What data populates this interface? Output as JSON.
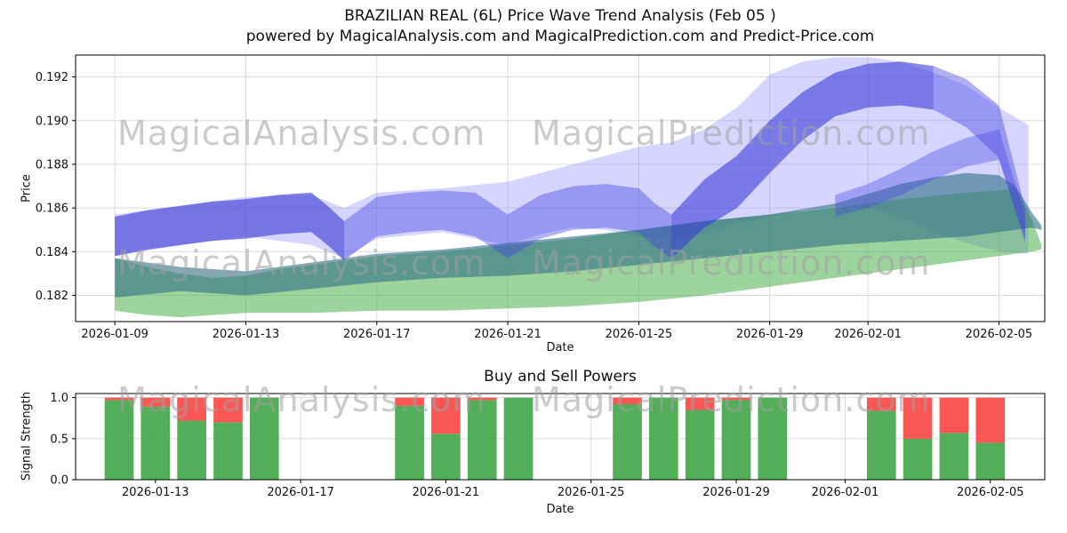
{
  "title": {
    "line1": "BRAZILIAN REAL  (6L) Price Wave Trend Analysis (Feb 05 )",
    "line2": "powered by MagicalAnalysis.com and MagicalPrediction.com and Predict-Price.com"
  },
  "watermarks": {
    "left": "MagicalAnalysis.com",
    "right": "MagicalPrediction.com"
  },
  "colors": {
    "band_light": "#7b7bff",
    "band_main": "#4646e0",
    "band_dark": "#3333cc",
    "band_green": "#4daf4d",
    "band_teal": "#2f6f86",
    "buy": "#3fa546",
    "sell": "#f94541",
    "grid": "#dcdcdc",
    "axis": "#000000"
  },
  "chart_data": [
    {
      "type": "area",
      "title": "BRAZILIAN REAL (6L) Price Wave Trend Analysis (Feb 05)",
      "xlabel": "Date",
      "ylabel": "Price",
      "x_domain": [
        7.8,
        37.4
      ],
      "y_domain": [
        0.1808,
        0.193
      ],
      "x_ticks": [
        "2026-01-09",
        "2026-01-13",
        "2026-01-17",
        "2026-01-21",
        "2026-01-25",
        "2026-01-29",
        "2026-02-01",
        "2026-02-05"
      ],
      "y_ticks": [
        0.182,
        0.184,
        0.186,
        0.188,
        0.19,
        0.192
      ],
      "grid": true,
      "bands": [
        {
          "name": "envelope-light",
          "color_key": "band_light",
          "opacity": 0.32,
          "x": [
            9,
            11,
            13,
            15,
            16,
            17,
            19,
            21,
            22,
            23,
            24,
            25,
            26,
            27,
            28,
            29,
            30,
            31,
            32,
            33,
            34,
            35,
            36,
            36.9
          ],
          "lower": [
            0.1838,
            0.1843,
            0.1847,
            0.1843,
            0.1837,
            0.1846,
            0.1849,
            0.1843,
            0.1848,
            0.1851,
            0.185,
            0.1847,
            0.1845,
            0.1848,
            0.1853,
            0.1856,
            0.1859,
            0.1861,
            0.186,
            0.1856,
            0.1849,
            0.1844,
            0.184,
            0.1839
          ],
          "upper": [
            0.1857,
            0.1861,
            0.1865,
            0.1866,
            0.186,
            0.1867,
            0.1869,
            0.1872,
            0.1876,
            0.188,
            0.1884,
            0.1888,
            0.189,
            0.1896,
            0.1906,
            0.1921,
            0.1927,
            0.1929,
            0.1929,
            0.1927,
            0.1922,
            0.1916,
            0.1906,
            0.1898
          ]
        },
        {
          "name": "band-green",
          "color_key": "band_green",
          "opacity": 0.55,
          "x": [
            9,
            10,
            11,
            12,
            13,
            14,
            15,
            17,
            19,
            21,
            23,
            25,
            27,
            29,
            31,
            33,
            35,
            36,
            36.5,
            37,
            37.3
          ],
          "lower": [
            0.1813,
            0.1811,
            0.181,
            0.1811,
            0.1812,
            0.1812,
            0.1812,
            0.1813,
            0.1813,
            0.1814,
            0.1815,
            0.1817,
            0.182,
            0.1824,
            0.1828,
            0.1832,
            0.1836,
            0.1838,
            0.1839,
            0.184,
            0.1841
          ],
          "upper": [
            0.1837,
            0.1833,
            0.183,
            0.1828,
            0.1829,
            0.1832,
            0.1834,
            0.1838,
            0.184,
            0.1843,
            0.1846,
            0.185,
            0.1854,
            0.1857,
            0.186,
            0.1864,
            0.1867,
            0.1868,
            0.1869,
            0.1855,
            0.1843
          ]
        },
        {
          "name": "band-teal",
          "color_key": "band_teal",
          "opacity": 0.6,
          "x": [
            9,
            11,
            13,
            15,
            17,
            19,
            21,
            23,
            25,
            27,
            29,
            31,
            33,
            34,
            35,
            36,
            36.5,
            37,
            37.3
          ],
          "lower": [
            0.1819,
            0.1822,
            0.182,
            0.1823,
            0.1826,
            0.1828,
            0.1829,
            0.1831,
            0.1834,
            0.1837,
            0.184,
            0.1843,
            0.1845,
            0.1846,
            0.1847,
            0.1849,
            0.185,
            0.1851,
            0.185
          ],
          "upper": [
            0.1837,
            0.1833,
            0.1831,
            0.1835,
            0.1839,
            0.1841,
            0.1844,
            0.1847,
            0.185,
            0.1854,
            0.1857,
            0.1862,
            0.1871,
            0.1874,
            0.1876,
            0.1875,
            0.187,
            0.1858,
            0.1852
          ]
        },
        {
          "name": "band-main",
          "color_key": "band_main",
          "opacity": 0.42,
          "x": [
            9,
            10,
            11,
            12,
            13,
            14,
            15,
            15.5,
            16,
            17,
            18,
            19,
            20,
            21,
            22,
            23,
            24,
            25,
            25.5,
            26,
            27,
            28,
            29,
            30,
            31,
            32,
            33,
            34,
            35,
            36,
            36.8
          ],
          "lower": [
            0.1838,
            0.1841,
            0.1843,
            0.1845,
            0.1846,
            0.1848,
            0.1849,
            0.1843,
            0.1836,
            0.1847,
            0.1849,
            0.185,
            0.1847,
            0.1837,
            0.1846,
            0.185,
            0.1851,
            0.1849,
            0.1842,
            0.1837,
            0.1851,
            0.186,
            0.1876,
            0.1891,
            0.1902,
            0.1906,
            0.1907,
            0.1905,
            0.1897,
            0.1883,
            0.1844
          ],
          "upper": [
            0.1856,
            0.1859,
            0.1861,
            0.1863,
            0.1864,
            0.1866,
            0.1867,
            0.1861,
            0.1854,
            0.1865,
            0.1867,
            0.1868,
            0.1867,
            0.1857,
            0.1866,
            0.187,
            0.1871,
            0.1869,
            0.1862,
            0.1857,
            0.1873,
            0.1884,
            0.19,
            0.1913,
            0.1922,
            0.1926,
            0.1927,
            0.1925,
            0.1919,
            0.1907,
            0.186
          ]
        },
        {
          "name": "band-dark-left",
          "color_key": "band_dark",
          "opacity": 0.35,
          "x": [
            9,
            10,
            11,
            12,
            13,
            14,
            15,
            15.5,
            16
          ],
          "lower": [
            0.1838,
            0.1841,
            0.1843,
            0.1845,
            0.1846,
            0.1848,
            0.1849,
            0.1843,
            0.1836
          ],
          "upper": [
            0.1856,
            0.1859,
            0.1861,
            0.1863,
            0.1864,
            0.1866,
            0.1867,
            0.1861,
            0.1854
          ]
        },
        {
          "name": "band-dark-right",
          "color_key": "band_dark",
          "opacity": 0.3,
          "x": [
            26,
            27,
            28,
            29,
            30,
            31,
            32,
            33,
            34
          ],
          "lower": [
            0.1837,
            0.1851,
            0.186,
            0.1876,
            0.1891,
            0.1902,
            0.1906,
            0.1907,
            0.1905
          ],
          "upper": [
            0.1857,
            0.1873,
            0.1884,
            0.19,
            0.1913,
            0.1922,
            0.1926,
            0.1927,
            0.1925
          ]
        },
        {
          "name": "band-right-rise",
          "color_key": "band_main",
          "opacity": 0.38,
          "x": [
            31,
            32,
            33,
            34,
            35,
            36,
            36.8
          ],
          "lower": [
            0.1856,
            0.186,
            0.1866,
            0.1873,
            0.1879,
            0.1882,
            0.1846
          ],
          "upper": [
            0.1866,
            0.1871,
            0.1878,
            0.1886,
            0.1892,
            0.1896,
            0.1856
          ]
        }
      ]
    },
    {
      "type": "bar",
      "stacked": true,
      "title": "Buy and Sell Powers",
      "xlabel": "Date",
      "ylabel": "Signal Strength",
      "x_domain": [
        10.8,
        37.5
      ],
      "y_domain": [
        0,
        1.05
      ],
      "x_ticks": [
        "2026-01-13",
        "2026-01-17",
        "2026-01-21",
        "2026-01-25",
        "2026-01-29",
        "2026-02-01",
        "2026-02-05"
      ],
      "y_ticks": [
        0.0,
        0.5,
        1.0
      ],
      "bar_width_days": 0.8,
      "series_names": [
        "Buy",
        "Sell"
      ],
      "bars": [
        {
          "date": "2026-01-12",
          "buy": 0.97,
          "sell": 0.03
        },
        {
          "date": "2026-01-13",
          "buy": 0.89,
          "sell": 0.11
        },
        {
          "date": "2026-01-14",
          "buy": 0.72,
          "sell": 0.28
        },
        {
          "date": "2026-01-15",
          "buy": 0.7,
          "sell": 0.3
        },
        {
          "date": "2026-01-16",
          "buy": 1.0,
          "sell": 0.0
        },
        {
          "date": "2026-01-20",
          "buy": 0.9,
          "sell": 0.1
        },
        {
          "date": "2026-01-21",
          "buy": 0.56,
          "sell": 0.44
        },
        {
          "date": "2026-01-22",
          "buy": 0.97,
          "sell": 0.03
        },
        {
          "date": "2026-01-23",
          "buy": 1.0,
          "sell": 0.0
        },
        {
          "date": "2026-01-26",
          "buy": 0.92,
          "sell": 0.08
        },
        {
          "date": "2026-01-27",
          "buy": 1.0,
          "sell": 0.0
        },
        {
          "date": "2026-01-28",
          "buy": 0.85,
          "sell": 0.15
        },
        {
          "date": "2026-01-29",
          "buy": 0.97,
          "sell": 0.03
        },
        {
          "date": "2026-01-30",
          "buy": 1.0,
          "sell": 0.0
        },
        {
          "date": "2026-02-02",
          "buy": 0.84,
          "sell": 0.16
        },
        {
          "date": "2026-02-03",
          "buy": 0.5,
          "sell": 0.5
        },
        {
          "date": "2026-02-04",
          "buy": 0.57,
          "sell": 0.43
        },
        {
          "date": "2026-02-05",
          "buy": 0.45,
          "sell": 0.55
        }
      ]
    }
  ]
}
